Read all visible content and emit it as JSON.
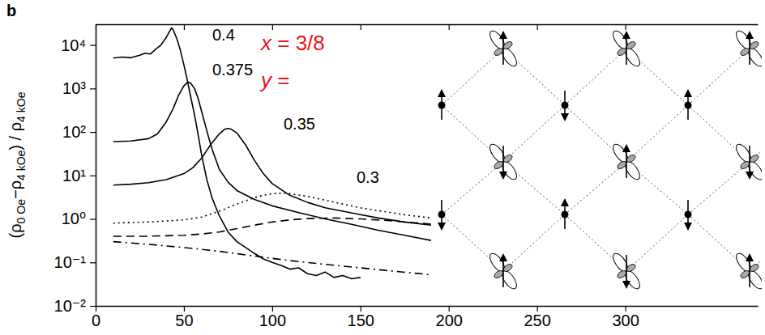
{
  "chart_data": {
    "type": "line",
    "panel": "b",
    "y_label": [
      "(ρ",
      "0 Oe",
      "−ρ",
      "4 kOe",
      ") / ρ",
      "4 kOe"
    ],
    "log": "y",
    "xlim": [
      0,
      375
    ],
    "xticks": [
      0,
      50,
      100,
      150,
      200,
      250,
      300
    ],
    "ylim": [
      0.01,
      30000
    ],
    "yticks": [
      {
        "value": 0.01,
        "label": "10⁻²"
      },
      {
        "value": 0.1,
        "label": "10⁻¹"
      },
      {
        "value": 1,
        "label": "10⁰"
      },
      {
        "value": 10,
        "label": "10¹"
      },
      {
        "value": 100,
        "label": "10²"
      },
      {
        "value": 1000,
        "label": "10³"
      },
      {
        "value": 10000,
        "label": "10⁴"
      }
    ],
    "annotations": [
      {
        "text": "x = 3/8",
        "color": "#e8141c"
      },
      {
        "text": "y =",
        "color": "#e8141c"
      }
    ],
    "series": [
      {
        "name": "0.4",
        "color": "#000000",
        "line_style": "solid",
        "x": [
          10,
          15,
          20,
          25,
          28,
          31,
          34,
          37,
          40,
          42,
          43,
          44,
          46,
          48,
          50,
          52,
          54,
          56,
          58,
          60,
          63,
          66,
          70,
          75,
          80,
          85,
          90,
          95,
          100,
          105,
          110,
          115,
          120,
          125,
          130,
          135,
          140,
          145,
          150
        ],
        "values": [
          5000,
          5300,
          5100,
          5800,
          6500,
          6200,
          8000,
          10000,
          15000,
          21000,
          25000,
          22000,
          14000,
          7500,
          3500,
          1500,
          600,
          250,
          90,
          30,
          8,
          3,
          1.2,
          0.5,
          0.3,
          0.22,
          0.16,
          0.12,
          0.1,
          0.085,
          0.07,
          0.075,
          0.055,
          0.05,
          0.06,
          0.045,
          0.05,
          0.042,
          0.045
        ]
      },
      {
        "name": "0.375",
        "color": "#000000",
        "line_style": "solid",
        "x": [
          10,
          20,
          30,
          35,
          40,
          44,
          47,
          50,
          52,
          53,
          54,
          56,
          58,
          60,
          62,
          64,
          66,
          70,
          75,
          80,
          90,
          100,
          115,
          130,
          145,
          160,
          175,
          190
        ],
        "values": [
          60,
          62,
          70,
          90,
          170,
          350,
          700,
          1150,
          1380,
          1400,
          1300,
          1000,
          600,
          300,
          150,
          75,
          40,
          14,
          7,
          4.5,
          2.8,
          2,
          1.4,
          1.0,
          0.75,
          0.55,
          0.42,
          0.32
        ]
      },
      {
        "name": "0.35",
        "color": "#000000",
        "line_style": "solid",
        "x": [
          10,
          20,
          30,
          40,
          50,
          55,
          60,
          65,
          70,
          73,
          75,
          77,
          80,
          85,
          90,
          95,
          100,
          110,
          120,
          130,
          140,
          150,
          160,
          175,
          190
        ],
        "values": [
          6,
          6.3,
          6.8,
          8,
          11,
          15,
          25,
          50,
          90,
          115,
          120,
          115,
          95,
          50,
          22,
          11,
          6.5,
          3.5,
          2.4,
          1.8,
          1.5,
          1.25,
          1.05,
          0.85,
          0.72
        ]
      },
      {
        "name": "0.3",
        "color": "#000000",
        "line_style": "dotted",
        "x": [
          10,
          30,
          50,
          60,
          70,
          80,
          90,
          95,
          100,
          105,
          110,
          120,
          130,
          140,
          150,
          160,
          175,
          190
        ],
        "values": [
          0.8,
          0.85,
          0.95,
          1.1,
          1.5,
          2.2,
          3.1,
          3.5,
          3.8,
          3.9,
          3.8,
          3.3,
          2.7,
          2.2,
          1.8,
          1.55,
          1.25,
          1.05
        ]
      },
      {
        "color": "#000000",
        "line_style": "dashed",
        "x": [
          10,
          30,
          50,
          60,
          70,
          80,
          90,
          100,
          110,
          120,
          135,
          150,
          165,
          180,
          190
        ],
        "values": [
          0.4,
          0.4,
          0.42,
          0.45,
          0.5,
          0.6,
          0.72,
          0.85,
          0.95,
          1.02,
          1.05,
          1.0,
          0.92,
          0.82,
          0.76
        ]
      },
      {
        "color": "#000000",
        "line_style": "dashdot",
        "x": [
          10,
          30,
          50,
          70,
          90,
          110,
          130,
          150,
          170,
          190
        ],
        "values": [
          0.3,
          0.26,
          0.22,
          0.18,
          0.14,
          0.11,
          0.09,
          0.075,
          0.062,
          0.052
        ]
      }
    ]
  }
}
